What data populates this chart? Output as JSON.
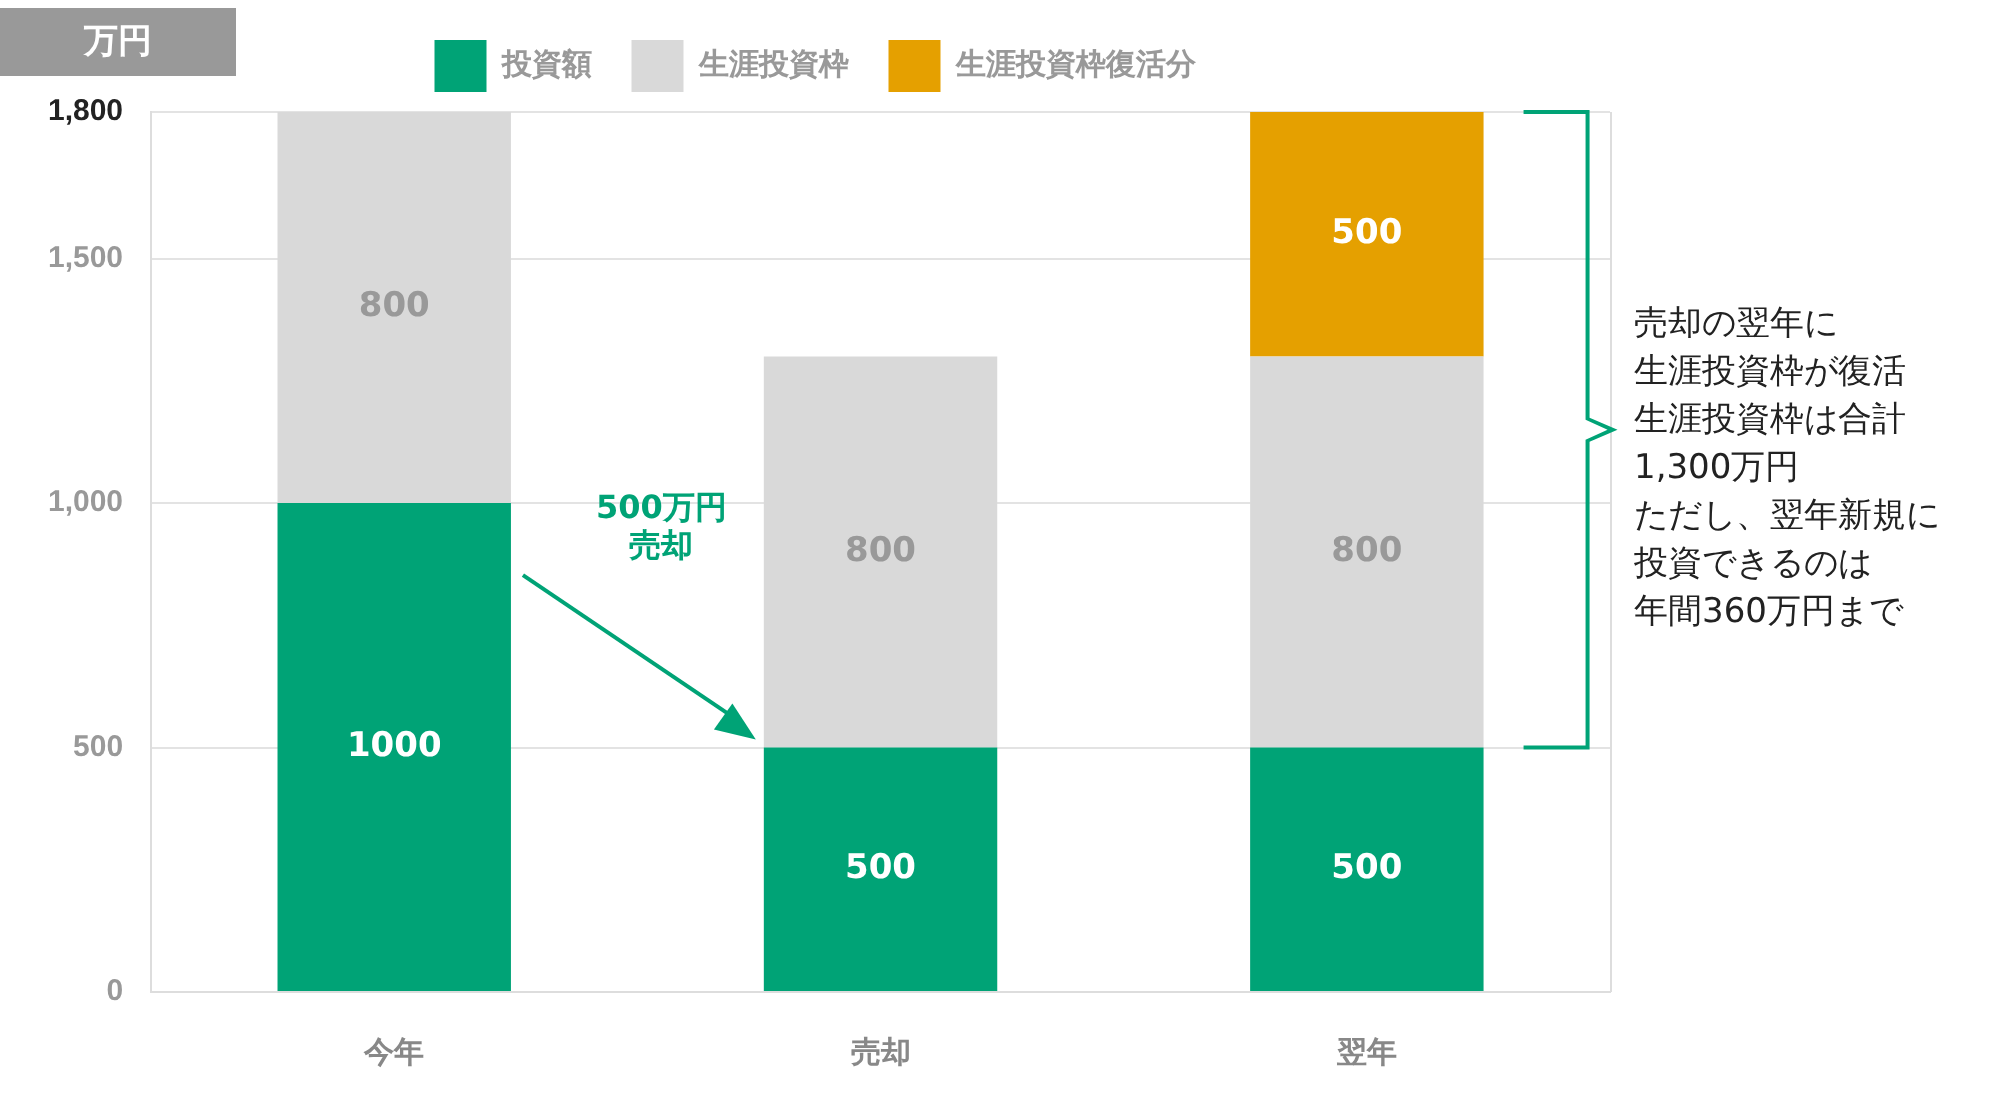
{
  "chart_data": {
    "type": "bar",
    "stacked": true,
    "ylabel": "万円",
    "categories": [
      "今年",
      "売却",
      "翌年"
    ],
    "series": [
      {
        "name": "投資額",
        "color": "#00a376",
        "values": [
          1000,
          500,
          500
        ]
      },
      {
        "name": "生涯投資枠",
        "color": "#d9d9d9",
        "values": [
          800,
          800,
          800
        ]
      },
      {
        "name": "生涯投資枠復活分",
        "color": "#e5a000",
        "values": [
          null,
          null,
          500
        ]
      }
    ],
    "ylim": [
      0,
      1800
    ],
    "yticks": [
      0,
      500,
      {
        "value": 1000,
        "label": "1,000"
      },
      {
        "value": 1500,
        "label": "1,500"
      },
      {
        "value": 1800,
        "label": "1,800"
      }
    ],
    "grid": "y",
    "legend": "top",
    "data_labels": true,
    "annotations": [
      "500万円売却",
      "売却の翌年に",
      "生涯投資枠が復活",
      "生涯投資枠は合計",
      "1,300万円",
      "ただし、翌年新規に",
      "投資できるのは",
      "年間360万円まで"
    ]
  }
}
